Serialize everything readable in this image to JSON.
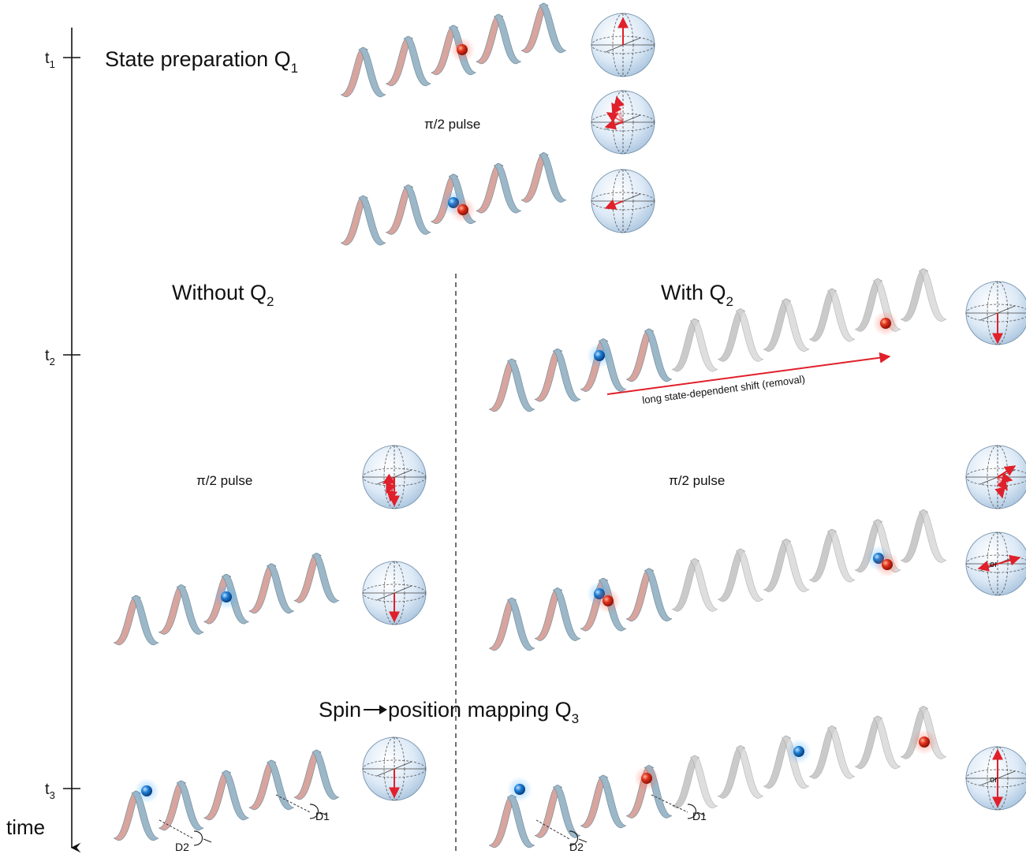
{
  "axis": {
    "tick_t1": "t",
    "tick_t1_sub": "1",
    "tick_t2": "t",
    "tick_t2_sub": "2",
    "tick_t3": "t",
    "tick_t3_sub": "3",
    "time_label": "time"
  },
  "headings": {
    "state_prep": "State preparation Q",
    "state_prep_sub": "1",
    "without": "Without Q",
    "without_sub": "2",
    "with": "With Q",
    "with_sub": "2",
    "mapping_pre": "Spin",
    "mapping_post": "position mapping Q",
    "mapping_sub": "3"
  },
  "labels": {
    "pulse_top": "π/2 pulse",
    "pulse_left": "π/2 pulse",
    "pulse_right": "π/2 pulse",
    "shift": "long state-dependent shift (removal)",
    "or_1": "or",
    "or_2": "or",
    "detector_d1_left": "D1",
    "detector_d2_left": "D2",
    "detector_d1_right": "D1",
    "detector_d2_right": "D2"
  },
  "colors": {
    "ribbon_blue": "#9bb7c8",
    "ribbon_pink": "#d7a59e",
    "ribbon_grey": "#c8c8c8",
    "atom_red": "#e0321b",
    "atom_blue": "#1e7fd6",
    "arrow_red": "#e0202a",
    "sphere_fill": "#dbe9f6"
  }
}
